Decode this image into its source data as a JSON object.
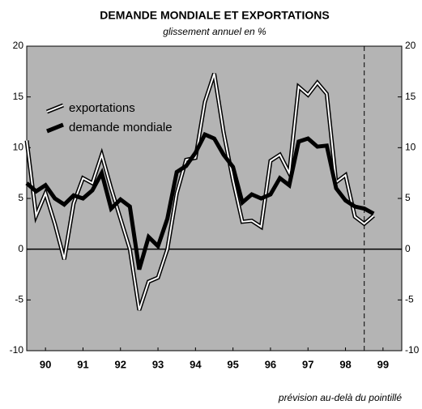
{
  "chart_data": {
    "type": "line",
    "title": "DEMANDE MONDIALE ET EXPORTATIONS",
    "subtitle": "glissement annuel en %",
    "annotation": "prévision au-delà du pointillé",
    "forecast_start": 1999,
    "x": [
      1990,
      1990.25,
      1990.5,
      1990.75,
      1991,
      1991.25,
      1991.5,
      1991.75,
      1992,
      1992.25,
      1992.5,
      1992.75,
      1993,
      1993.25,
      1993.5,
      1993.75,
      1994,
      1994.25,
      1994.5,
      1994.75,
      1995,
      1995.25,
      1995.5,
      1995.75,
      1996,
      1996.25,
      1996.5,
      1996.75,
      1997,
      1997.25,
      1997.5,
      1997.75,
      1998,
      1998.25,
      1998.5,
      1998.75,
      1999,
      1999.25
    ],
    "series": [
      {
        "name": "exportations",
        "color": "#ffffff",
        "values": [
          10.7,
          3.3,
          5.5,
          2.5,
          -1.0,
          4.5,
          7.0,
          6.5,
          9.3,
          6.0,
          3.0,
          0.0,
          -6.0,
          -3.2,
          -2.8,
          0,
          5.5,
          8.8,
          9.0,
          14.5,
          17.3,
          11.5,
          6.8,
          2.7,
          2.8,
          2.2,
          8.7,
          9.3,
          7.5,
          16.0,
          15.2,
          16.4,
          15.3,
          6.6,
          7.3,
          3.2,
          2.5,
          3.3
        ]
      },
      {
        "name": "demande mondiale",
        "color": "#000000",
        "values": [
          6.5,
          5.7,
          6.3,
          5.0,
          4.4,
          5.3,
          5.0,
          5.8,
          7.5,
          4.0,
          4.9,
          4.2,
          -2.0,
          1.2,
          0.3,
          3.0,
          7.6,
          8.2,
          9.5,
          11.3,
          10.9,
          9.3,
          8.1,
          4.6,
          5.4,
          5.0,
          5.4,
          7.0,
          6.3,
          10.6,
          10.9,
          10.1,
          10.2,
          6.0,
          4.8,
          4.2,
          4.0,
          3.5
        ]
      }
    ],
    "xlim": [
      1990,
      2000
    ],
    "xticks": [
      {
        "value": 1990.5,
        "label": "90"
      },
      {
        "value": 1991.5,
        "label": "91"
      },
      {
        "value": 1992.5,
        "label": "92"
      },
      {
        "value": 1993.5,
        "label": "93"
      },
      {
        "value": 1994.5,
        "label": "94"
      },
      {
        "value": 1995.5,
        "label": "95"
      },
      {
        "value": 1996.5,
        "label": "96"
      },
      {
        "value": 1997.5,
        "label": "97"
      },
      {
        "value": 1998.5,
        "label": "98"
      },
      {
        "value": 1999.5,
        "label": "99"
      }
    ],
    "ylim": [
      -10,
      20
    ],
    "yticks": [
      -10,
      -5,
      0,
      5,
      10,
      15,
      20
    ],
    "zero_line": true
  }
}
